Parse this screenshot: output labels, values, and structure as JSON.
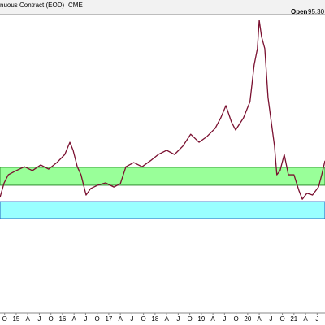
{
  "chart_data": {
    "type": "line",
    "title": "nuous Contract (EOD)",
    "exchange": "CME",
    "open_label": "Open",
    "open_value": "95.30",
    "x": [
      2014.65,
      2014.74,
      2014.83,
      2015.0,
      2015.18,
      2015.35,
      2015.53,
      2015.7,
      2015.88,
      2016.05,
      2016.16,
      2016.23,
      2016.32,
      2016.4,
      2016.51,
      2016.61,
      2016.76,
      2016.93,
      2017.11,
      2017.25,
      2017.37,
      2017.54,
      2017.72,
      2017.9,
      2018.07,
      2018.25,
      2018.42,
      2018.6,
      2018.77,
      2018.95,
      2019.12,
      2019.3,
      2019.42,
      2019.53,
      2019.65,
      2019.74,
      2019.91,
      2020.05,
      2020.14,
      2020.21,
      2020.25,
      2020.3,
      2020.37,
      2020.44,
      2020.51,
      2020.58,
      2020.63,
      2020.7,
      2020.79,
      2020.88,
      2021.0,
      2021.11,
      2021.18,
      2021.28,
      2021.4,
      2021.53,
      2021.6,
      2021.67
    ],
    "series": [
      {
        "color": "#7a1030",
        "values": [
          38.7,
          43.6,
          46.3,
          47.7,
          49.0,
          47.7,
          49.6,
          48.2,
          50.4,
          53.1,
          57.2,
          54.5,
          49.0,
          46.3,
          39.5,
          41.7,
          42.8,
          43.6,
          42.2,
          43.3,
          49.0,
          50.4,
          49.0,
          51.0,
          53.1,
          54.5,
          53.1,
          55.9,
          59.9,
          57.2,
          59.1,
          61.9,
          65.4,
          69.5,
          64.0,
          61.3,
          65.4,
          70.8,
          83.1,
          88.6,
          98.1,
          92.6,
          88.6,
          72.2,
          64.0,
          55.9,
          46.3,
          47.7,
          53.1,
          46.3,
          46.3,
          40.9,
          38.1,
          40.1,
          39.5,
          42.2,
          46.3,
          51.0
        ]
      }
    ],
    "bands": [
      {
        "from": 42.8,
        "to": 48.8,
        "color": "#99ff99",
        "border": "#2e8b2e"
      },
      {
        "from": 31.6,
        "to": 37.3,
        "color": "#99ffff",
        "border": "#1f5fbf"
      }
    ],
    "xlim": [
      2014.65,
      2021.67
    ],
    "ylim": [
      0,
      100
    ],
    "xticks": [
      {
        "value": 2014.75,
        "label": "O"
      },
      {
        "value": 2015,
        "label": "15"
      },
      {
        "value": 2015.25,
        "label": "A"
      },
      {
        "value": 2015.5,
        "label": "J"
      },
      {
        "value": 2015.75,
        "label": "O"
      },
      {
        "value": 2016,
        "label": "16"
      },
      {
        "value": 2016.25,
        "label": "A"
      },
      {
        "value": 2016.5,
        "label": "J"
      },
      {
        "value": 2016.75,
        "label": "O"
      },
      {
        "value": 2017,
        "label": "17"
      },
      {
        "value": 2017.25,
        "label": "A"
      },
      {
        "value": 2017.5,
        "label": "J"
      },
      {
        "value": 2017.75,
        "label": "O"
      },
      {
        "value": 2018,
        "label": "18"
      },
      {
        "value": 2018.25,
        "label": "A"
      },
      {
        "value": 2018.5,
        "label": "J"
      },
      {
        "value": 2018.75,
        "label": "O"
      },
      {
        "value": 2019,
        "label": "19"
      },
      {
        "value": 2019.25,
        "label": "A"
      },
      {
        "value": 2019.5,
        "label": "J"
      },
      {
        "value": 2019.75,
        "label": "O"
      },
      {
        "value": 2020,
        "label": "20"
      },
      {
        "value": 2020.25,
        "label": "A"
      },
      {
        "value": 2020.5,
        "label": "J"
      },
      {
        "value": 2020.75,
        "label": "O"
      },
      {
        "value": 2021,
        "label": "21"
      },
      {
        "value": 2021.25,
        "label": "A"
      },
      {
        "value": 2021.5,
        "label": "J"
      }
    ],
    "grid": false
  }
}
